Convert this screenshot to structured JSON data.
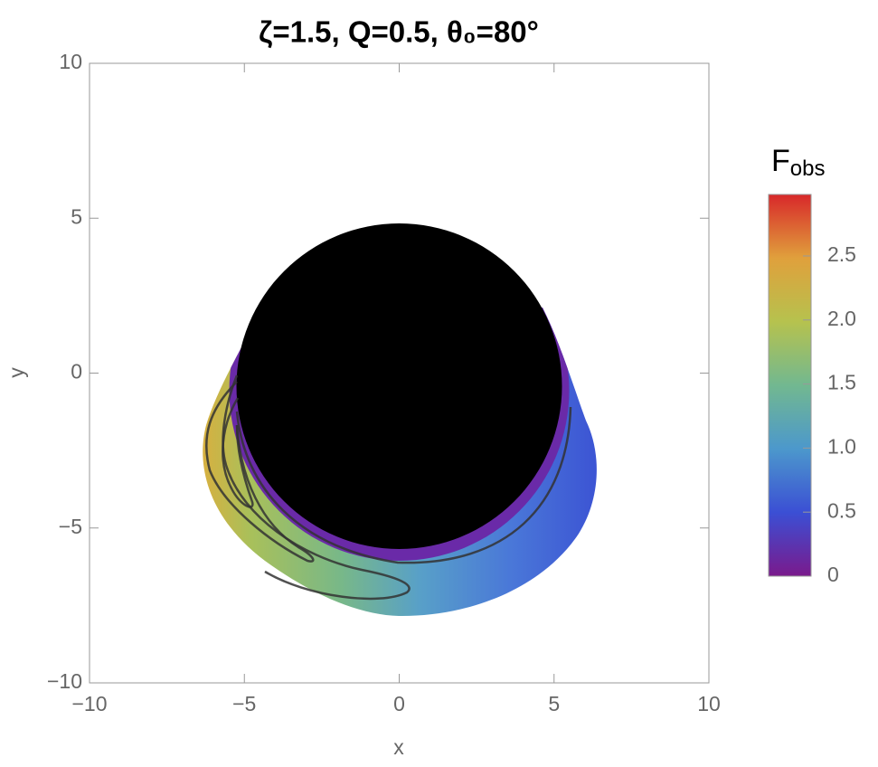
{
  "chart_data": {
    "type": "density",
    "title": "ζ=1.5, Q=0.5, θ₀=80°",
    "x_label": "x",
    "y_label": "y",
    "xlim": [
      -10,
      10
    ],
    "ylim": [
      -10,
      10
    ],
    "xticks": [
      {
        "value": -10,
        "label": "−10"
      },
      {
        "value": -5,
        "label": "−5"
      },
      0,
      5,
      10
    ],
    "yticks": [
      {
        "value": -10,
        "label": "−10"
      },
      {
        "value": -5,
        "label": "−5"
      },
      0,
      5,
      10
    ],
    "colorbar": {
      "label": "F",
      "label_sub": "obs",
      "lim": [
        0,
        2.98
      ],
      "ticks": [
        0,
        0.5,
        {
          "value": 1,
          "label": "1.0"
        },
        1.5,
        {
          "value": 2,
          "label": "2.0"
        },
        2.5
      ],
      "colors": [
        "#7a1a8c",
        "#3b4fd4",
        "#4c98cc",
        "#72b890",
        "#b6c24e",
        "#e0a03c",
        "#d8282a"
      ]
    }
  }
}
